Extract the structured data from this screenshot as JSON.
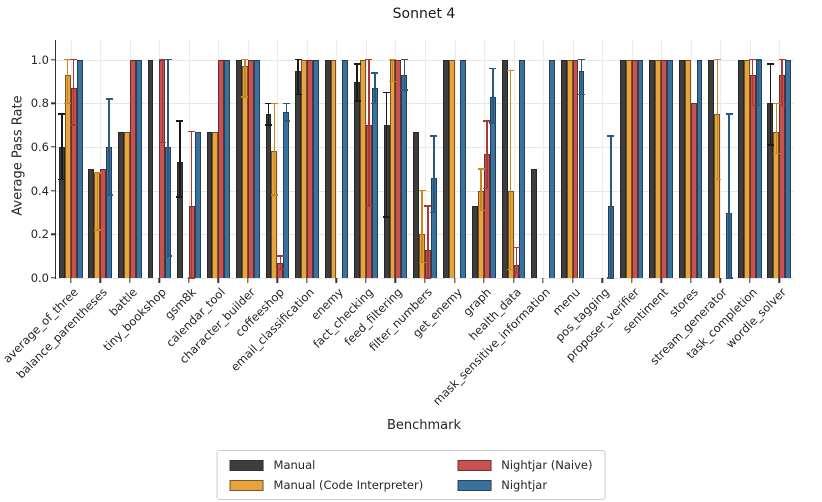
{
  "title": "Sonnet 4",
  "xlabel": "Benchmark",
  "ylabel": "Average Pass Rate",
  "legend": [
    {
      "label": "Manual",
      "color": "#3d3d3d"
    },
    {
      "label": "Manual (Code Interpreter)",
      "color": "#e8a33d"
    },
    {
      "label": "Nightjar (Naive)",
      "color": "#c85250"
    },
    {
      "label": "Nightjar",
      "color": "#39719f"
    }
  ],
  "chart_data": {
    "type": "bar",
    "title": "Sonnet 4",
    "xlabel": "Benchmark",
    "ylabel": "Average Pass Rate",
    "ylim": [
      0,
      1.09
    ],
    "grid": true,
    "legend_position": "bottom-center",
    "yticks": [
      0.0,
      0.2,
      0.4,
      0.6,
      0.8,
      1.0
    ],
    "ytick_labels": [
      "0.0",
      "0.2",
      "0.4",
      "0.6",
      "0.8",
      "1.0"
    ],
    "categories": [
      "average_of_three",
      "balance_parentheses",
      "battle",
      "tiny_bookshop",
      "gsm8k",
      "calendar_tool",
      "character_builder",
      "coffeeshop",
      "email_classification",
      "enemy",
      "fact_checking",
      "feed_filtering",
      "filter_numbers",
      "get_enemy",
      "graph",
      "health_data",
      "mask_sensitive_information",
      "menu",
      "pos_tagging",
      "proposer_verifier",
      "sentiment",
      "stores",
      "stream_generator",
      "task_completion",
      "wordle_solver"
    ],
    "series": [
      {
        "name": "Manual",
        "color": "#3d3d3d",
        "error_color": "#1a1a1a",
        "values": [
          0.6,
          0.5,
          0.67,
          1.0,
          0.53,
          0.67,
          1.0,
          0.75,
          0.95,
          1.0,
          0.9,
          0.7,
          0.67,
          1.0,
          0.33,
          1.0,
          0.5,
          1.0,
          0.0,
          1.0,
          1.0,
          1.0,
          1.0,
          1.0,
          0.8
        ],
        "err_low": [
          0.45,
          null,
          null,
          null,
          0.37,
          null,
          null,
          0.7,
          0.84,
          null,
          0.81,
          0.28,
          null,
          null,
          null,
          null,
          null,
          null,
          null,
          null,
          null,
          null,
          null,
          null,
          0.61
        ],
        "err_high": [
          0.75,
          null,
          null,
          null,
          0.72,
          null,
          null,
          0.8,
          1.0,
          null,
          0.98,
          0.85,
          null,
          null,
          null,
          null,
          null,
          null,
          null,
          null,
          null,
          null,
          null,
          null,
          0.98
        ]
      },
      {
        "name": "Manual (Code Interpreter)",
        "color": "#e8a33d",
        "error_color": "#c9871a",
        "values": [
          0.93,
          0.48,
          0.67,
          0.0,
          0.0,
          0.67,
          0.97,
          0.58,
          1.0,
          1.0,
          1.0,
          1.0,
          0.2,
          1.0,
          0.4,
          0.4,
          0.0,
          1.0,
          0.0,
          1.0,
          1.0,
          1.0,
          0.75,
          1.0,
          0.67
        ],
        "err_low": [
          0.8,
          0.22,
          null,
          null,
          null,
          null,
          0.83,
          0.38,
          null,
          null,
          null,
          0.9,
          0.07,
          null,
          0.31,
          0.04,
          null,
          null,
          null,
          null,
          null,
          null,
          0.45,
          null,
          0.57
        ],
        "err_high": [
          1.0,
          0.48,
          null,
          null,
          null,
          null,
          1.0,
          0.8,
          null,
          null,
          null,
          1.0,
          0.4,
          null,
          0.5,
          0.95,
          null,
          null,
          null,
          null,
          null,
          null,
          1.0,
          null,
          0.8
        ]
      },
      {
        "name": "Nightjar (Naive)",
        "color": "#c85250",
        "error_color": "#a93936",
        "values": [
          0.87,
          0.5,
          1.0,
          1.0,
          0.33,
          1.0,
          1.0,
          0.07,
          1.0,
          0.0,
          0.7,
          1.0,
          0.13,
          0.0,
          0.57,
          0.06,
          0.0,
          1.0,
          0.0,
          1.0,
          1.0,
          0.8,
          0.0,
          0.93,
          0.93
        ],
        "err_low": [
          0.7,
          null,
          null,
          0.62,
          0.0,
          null,
          null,
          0.04,
          null,
          null,
          0.33,
          null,
          0.0,
          null,
          0.41,
          0.02,
          null,
          null,
          null,
          null,
          null,
          null,
          null,
          0.79,
          0.79
        ],
        "err_high": [
          1.0,
          null,
          null,
          1.0,
          0.67,
          null,
          null,
          0.1,
          null,
          null,
          1.0,
          null,
          0.33,
          null,
          0.72,
          0.14,
          null,
          null,
          null,
          null,
          null,
          null,
          null,
          1.0,
          1.0
        ]
      },
      {
        "name": "Nightjar",
        "color": "#39719f",
        "error_color": "#2a587e",
        "values": [
          1.0,
          0.6,
          1.0,
          0.6,
          0.67,
          1.0,
          1.0,
          0.76,
          1.0,
          1.0,
          0.87,
          0.93,
          0.46,
          1.0,
          0.83,
          1.0,
          1.0,
          0.95,
          0.33,
          1.0,
          1.0,
          1.0,
          0.3,
          1.0,
          1.0
        ],
        "err_low": [
          null,
          0.38,
          null,
          0.1,
          null,
          null,
          null,
          0.72,
          null,
          null,
          0.8,
          0.86,
          0.3,
          null,
          0.71,
          null,
          null,
          0.84,
          0.0,
          null,
          null,
          null,
          0.0,
          0.79,
          null
        ],
        "err_high": [
          null,
          0.82,
          null,
          1.0,
          null,
          null,
          null,
          0.8,
          null,
          null,
          0.94,
          1.0,
          0.65,
          null,
          0.96,
          null,
          null,
          1.0,
          0.65,
          null,
          null,
          null,
          0.75,
          1.0,
          null
        ]
      }
    ]
  }
}
